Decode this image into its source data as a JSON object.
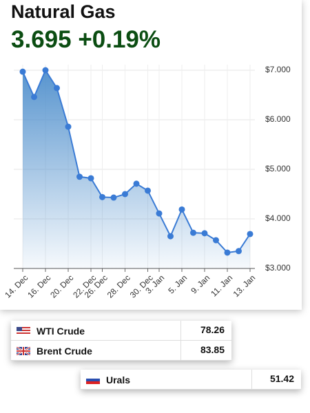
{
  "header": {
    "title": "Natural Gas",
    "price": "3.695",
    "change": "+0.19%"
  },
  "chart_data": {
    "type": "area",
    "categories": [
      "14. Dec",
      null,
      "16. Dec",
      null,
      "20. Dec",
      null,
      "22. Dec",
      "26. Dec",
      null,
      "28. Dec",
      null,
      "30. Dec",
      "3. Jan",
      null,
      "5. Jan",
      null,
      "9. Jan",
      null,
      "11. Jan",
      null,
      "13. Jan"
    ],
    "values": [
      6.97,
      6.46,
      7.0,
      6.64,
      5.86,
      4.85,
      4.82,
      4.44,
      4.43,
      4.5,
      4.71,
      4.57,
      4.11,
      3.65,
      4.19,
      3.72,
      3.71,
      3.57,
      3.32,
      3.35,
      3.695
    ],
    "color": "#3a7bd5",
    "ylim": [
      3,
      7
    ],
    "yticks": [
      {
        "value": 3,
        "label": "$3.000"
      },
      {
        "value": 4,
        "label": "$4.000"
      },
      {
        "value": 5,
        "label": "$5.000"
      },
      {
        "value": 6,
        "label": "$6.000"
      },
      {
        "value": 7,
        "label": "$7.000"
      }
    ],
    "grid": true
  },
  "table": {
    "rows": [
      {
        "name": "WTI Crude",
        "value": 78.26
      },
      {
        "name": "Brent Crude",
        "value": 83.85
      },
      {
        "name": "Urals",
        "value": 51.42
      }
    ]
  }
}
